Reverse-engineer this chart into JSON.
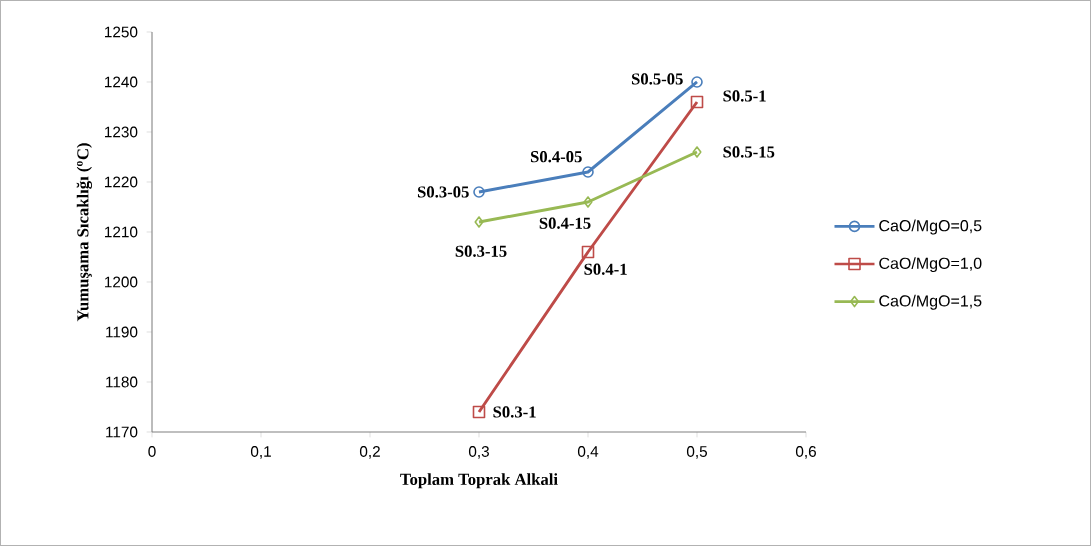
{
  "chart_data": {
    "type": "line",
    "xlabel": "Toplam Toprak Alkali",
    "ylabel": "Yumuşama Sıcaklığı ($^{o}$C)",
    "x": [
      0.3,
      0.4,
      0.5
    ],
    "series": [
      {
        "name": "CaO/MgO=0,5",
        "color": "#4a7ebb",
        "values": [
          1218,
          1222,
          1240
        ],
        "marker": "circle"
      },
      {
        "name": "CaO/MgO=1,0",
        "color": "#be4b48",
        "values": [
          1174,
          1206,
          1236
        ],
        "marker": "square"
      },
      {
        "name": "CaO/MgO=1,5",
        "color": "#98b954",
        "values": [
          1212,
          1216,
          1226
        ],
        "marker": "diamond"
      }
    ],
    "xlim": [
      0,
      0.6
    ],
    "xticks": [
      {
        "value": 0,
        "label": "0"
      },
      {
        "value": 0.1,
        "label": "0,1"
      },
      {
        "value": 0.2,
        "label": "0,2"
      },
      {
        "value": 0.3,
        "label": "0,3"
      },
      {
        "value": 0.4,
        "label": "0,4"
      },
      {
        "value": 0.5,
        "label": "0,5"
      },
      {
        "value": 0.6,
        "label": "0,6"
      }
    ],
    "ylim": [
      1170,
      1250
    ],
    "yticks": [
      1170,
      1180,
      1190,
      1200,
      1210,
      1220,
      1230,
      1240,
      1250
    ],
    "grid": false,
    "legend": "right",
    "line_style": "solid",
    "annotations": [
      {
        "text": "S0.3-05",
        "x": 0.3,
        "y": 1218
      },
      {
        "text": "S0.4-05",
        "x": 0.4,
        "y": 1222
      },
      {
        "text": "S0.5-05",
        "x": 0.5,
        "y": 1240
      },
      {
        "text": "S0.3-1",
        "x": 0.3,
        "y": 1174
      },
      {
        "text": "S0.4-1",
        "x": 0.4,
        "y": 1206
      },
      {
        "text": "S0.5-1",
        "x": 0.5,
        "y": 1236
      },
      {
        "text": "S0.3-15",
        "x": 0.3,
        "y": 1212
      },
      {
        "text": "S0.4-15",
        "x": 0.4,
        "y": 1216
      },
      {
        "text": "S0.5-15",
        "x": 0.5,
        "y": 1226
      }
    ]
  }
}
